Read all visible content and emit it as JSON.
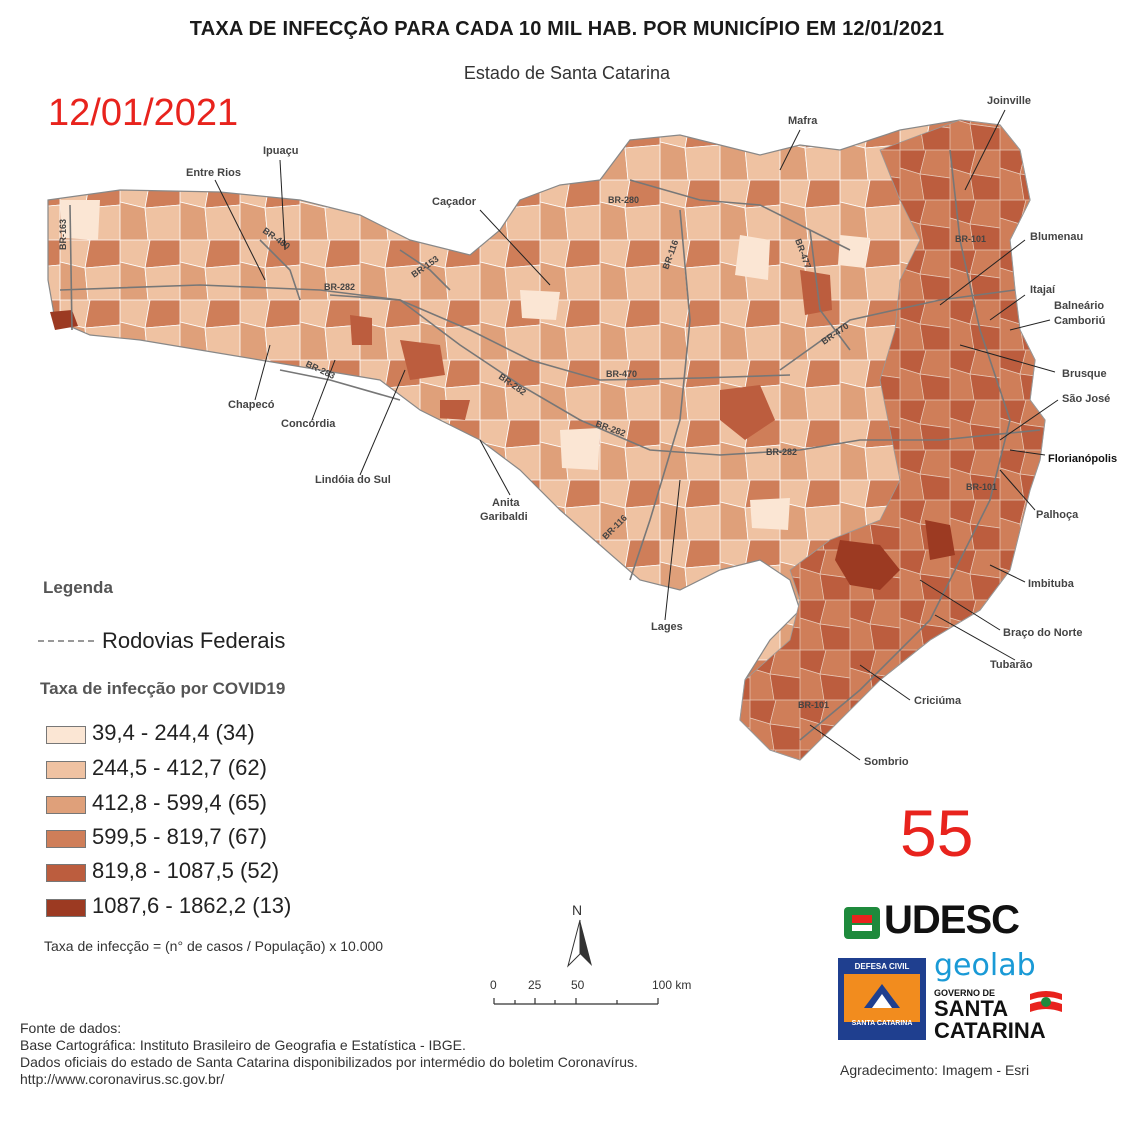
{
  "title": "TAXA DE INFECÇÃO PARA CADA 10 MIL HAB. POR MUNICÍPIO EM 12/01/2021",
  "subtitle": "Estado de Santa Catarina",
  "date_stamp": "12/01/2021",
  "big_number": "55",
  "cities": {
    "joinville": "Joinville",
    "mafra": "Mafra",
    "ipuacu": "Ipuaçu",
    "entre_rios": "Entre Rios",
    "cacador": "Caçador",
    "blumenau": "Blumenau",
    "itajai": "Itajaí",
    "balneario": "Balneário",
    "camboriu": "Camboriú",
    "brusque": "Brusque",
    "sao_jose": "São José",
    "florianopolis": "Florianópolis",
    "palhoca": "Palhoça",
    "imbituba": "Imbituba",
    "braco_do_norte": "Braço do Norte",
    "tubarao": "Tubarão",
    "criciuma": "Criciúma",
    "sombrio": "Sombrio",
    "lages": "Lages",
    "anita": "Anita",
    "garibaldi": "Garibaldi",
    "lindoia": "Lindóia do Sul",
    "concordia": "Concórdia",
    "chapeco": "Chapecó"
  },
  "roads": {
    "br163": "BR-163",
    "br480": "BR-480",
    "br282_w": "BR-282",
    "br153": "BR-153",
    "br280": "BR-280",
    "br116_n": "BR-116",
    "br477": "BR-477",
    "br101_n": "BR-101",
    "br470_e": "BR-470",
    "br470_c": "BR-470",
    "br283": "BR-283",
    "br282_c": "BR-282",
    "br282_s": "BR-282",
    "br282_e": "BR-282",
    "br116_s": "BR-116",
    "br101_c": "BR-101",
    "br101_s": "BR-101"
  },
  "legend": {
    "title": "Legenda",
    "road_label": "Rodovias Federais",
    "covid_title": "Taxa de infecção por COVID19",
    "classes": [
      {
        "label": "39,4 - 244,4 (34)",
        "color": "#fbe6d4"
      },
      {
        "label": "244,5 - 412,7 (62)",
        "color": "#efc2a2"
      },
      {
        "label": "412,8 - 599,4 (65)",
        "color": "#dfa07a"
      },
      {
        "label": "599,5 - 819,7 (67)",
        "color": "#cf7e59"
      },
      {
        "label": "819,8 - 1087,5 (52)",
        "color": "#bc5d3e"
      },
      {
        "label": "1087,6 - 1862,2 (13)",
        "color": "#9c3a22"
      }
    ],
    "formula": "Taxa de infecção = (n° de casos / População) x 10.000"
  },
  "north_label": "N",
  "scale": {
    "labels": [
      "0",
      "25",
      "50",
      "100 km"
    ]
  },
  "sources": [
    "Fonte de dados:",
    "Base Cartográfica: Instituto Brasileiro de Geografia e Estatística - IBGE.",
    "Dados oficiais do estado de Santa Catarina disponibilizados por intermédio do boletim Coronavírus.",
    "http://www.coronavirus.sc.gov.br/"
  ],
  "credits": "Agradecimento: Imagem - Esri",
  "logos": {
    "udesc": "UDESC",
    "defesa_top": "DEFESA CIVIL",
    "defesa_bottom": "SANTA CATARINA",
    "geolab": "geolab",
    "gov_small": "GOVERNO DE",
    "gov_big_1": "SANTA",
    "gov_big_2": "CATARINA"
  }
}
